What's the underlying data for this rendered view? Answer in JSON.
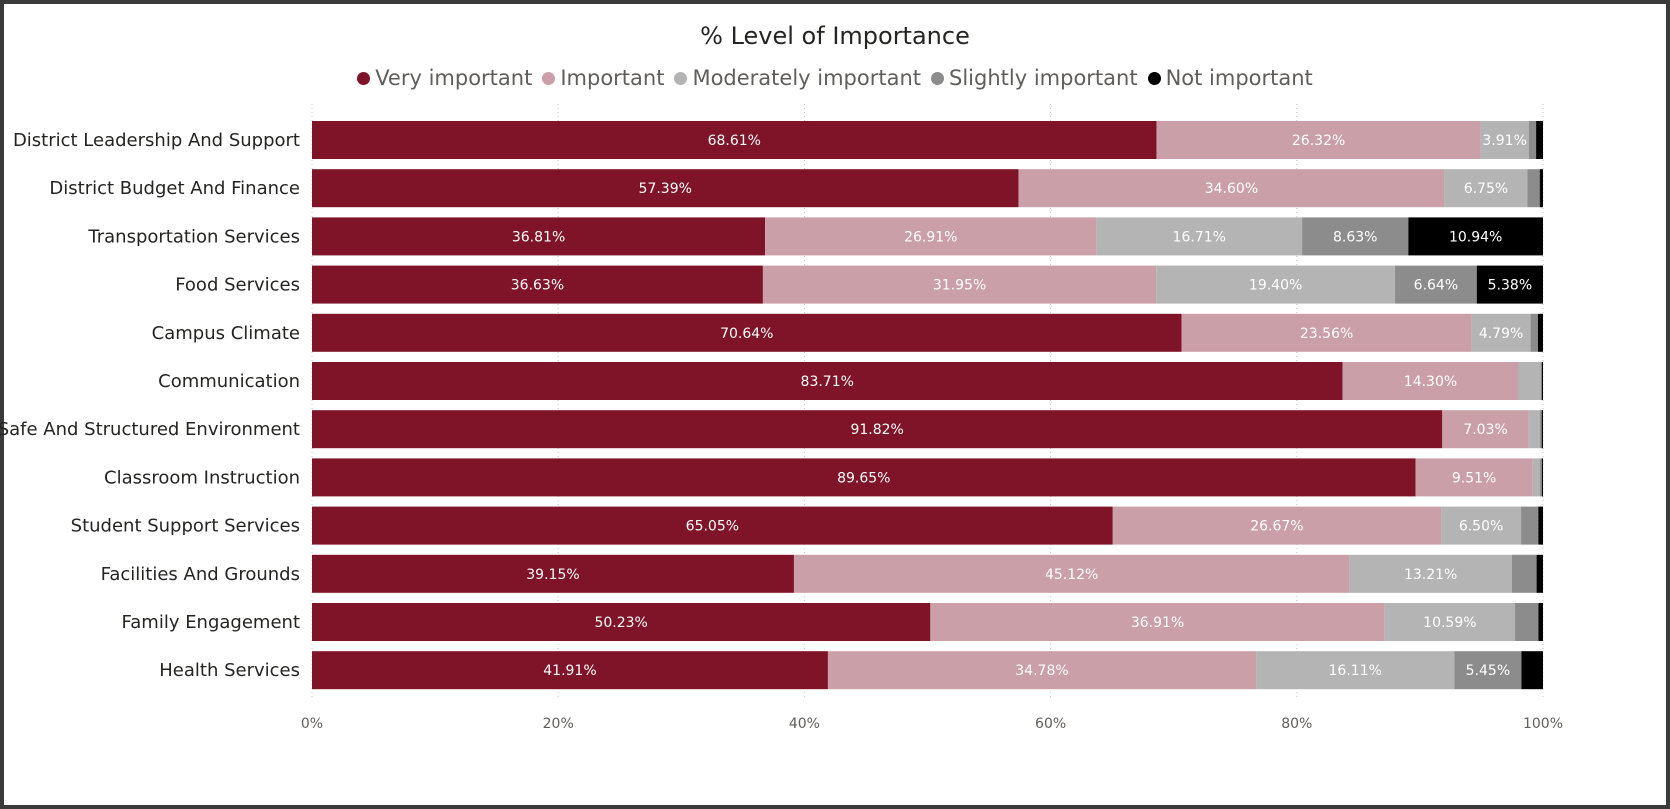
{
  "chart_data": {
    "type": "bar",
    "orientation": "horizontal",
    "stacked": "100%",
    "title": "% Level of Importance",
    "legend_position": "top-center",
    "grid": true,
    "xlim": [
      0,
      100
    ],
    "x_ticks": [
      "0%",
      "20%",
      "40%",
      "60%",
      "80%",
      "100%"
    ],
    "categories": [
      "District Leadership And Support",
      "District Budget And Finance",
      "Transportation Services",
      "Food Services",
      "Campus Climate",
      "Communication",
      "Safe And Structured Environment",
      "Classroom Instruction",
      "Student Support Services",
      "Facilities And Grounds",
      "Family Engagement",
      "Health Services"
    ],
    "series": [
      {
        "name": "Very important",
        "color": "#7f1327",
        "label_color": "#ffffff",
        "values": [
          68.61,
          57.39,
          36.81,
          36.63,
          70.64,
          83.71,
          91.82,
          89.65,
          65.05,
          39.15,
          50.23,
          41.91
        ],
        "labels": [
          "68.61%",
          "57.39%",
          "36.81%",
          "36.63%",
          "70.64%",
          "83.71%",
          "91.82%",
          "89.65%",
          "65.05%",
          "39.15%",
          "50.23%",
          "41.91%"
        ]
      },
      {
        "name": "Important",
        "color": "#cb9fa7",
        "label_color": "#ffffff",
        "values": [
          26.32,
          34.6,
          26.91,
          31.95,
          23.56,
          14.3,
          7.03,
          9.51,
          26.67,
          45.12,
          36.91,
          34.78
        ],
        "labels": [
          "26.32%",
          "34.60%",
          "26.91%",
          "31.95%",
          "23.56%",
          "14.30%",
          "7.03%",
          "9.51%",
          "26.67%",
          "45.12%",
          "36.91%",
          "34.78%"
        ]
      },
      {
        "name": "Moderately important",
        "color": "#b4b4b4",
        "label_color": "#ffffff",
        "values": [
          3.91,
          6.75,
          16.71,
          19.4,
          4.79,
          1.8,
          0.9,
          0.6,
          6.5,
          13.21,
          10.59,
          16.11
        ],
        "labels": [
          "3.91%",
          "6.75%",
          "16.71%",
          "19.40%",
          "4.79%",
          "",
          "",
          "",
          "6.50%",
          "13.21%",
          "10.59%",
          "16.11%"
        ]
      },
      {
        "name": "Slightly important",
        "color": "#8c8c8c",
        "label_color": "#ffffff",
        "values": [
          0.6,
          1.0,
          8.63,
          6.64,
          0.6,
          0.1,
          0.15,
          0.15,
          1.4,
          2.0,
          1.9,
          5.45
        ],
        "labels": [
          "",
          "",
          "8.63%",
          "6.64%",
          "",
          "",
          "",
          "",
          "",
          "",
          "",
          "5.45%"
        ]
      },
      {
        "name": "Not important",
        "color": "#000000",
        "label_color": "#ffffff",
        "values": [
          0.56,
          0.26,
          10.94,
          5.38,
          0.41,
          0.09,
          0.1,
          0.09,
          0.38,
          0.52,
          0.37,
          1.75
        ],
        "labels": [
          "",
          "",
          "10.94%",
          "5.38%",
          "",
          "",
          "",
          "",
          "",
          "",
          "",
          ""
        ]
      }
    ]
  }
}
